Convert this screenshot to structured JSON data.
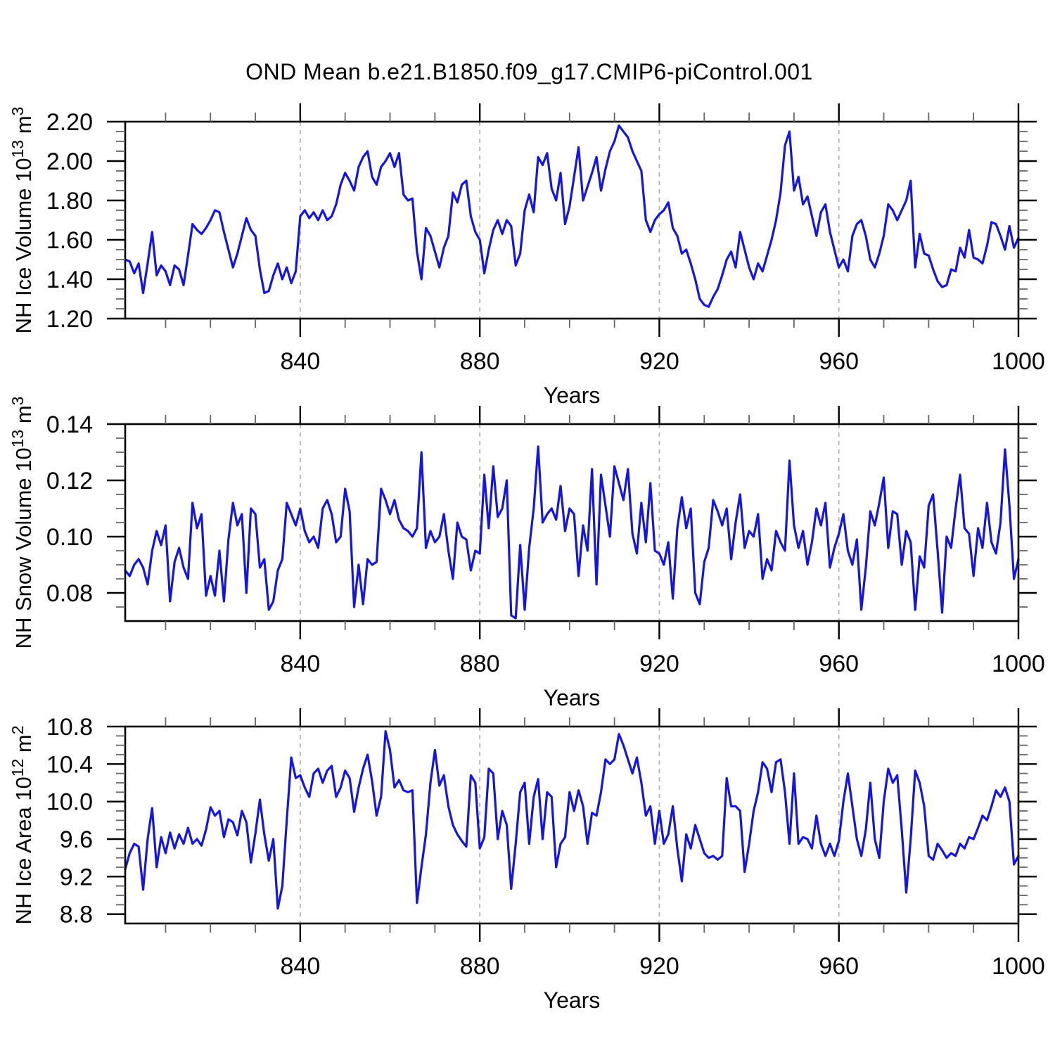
{
  "title": "OND Mean b.e21.B1850.f09_g17.CMIP6-piControl.001",
  "colors": {
    "line": "#1414e6",
    "frame": "#000000",
    "major_tick": "#000000",
    "minor_tick": "#666666",
    "grid": "#b4b4b4",
    "background": "#ffffff"
  },
  "chart_data": [
    {
      "type": "line",
      "name": "nh-ice-volume",
      "ylabel": "NH Ice Volume 10^13 m^3",
      "ylabel_rich": [
        {
          "t": "NH Ice Volume 10",
          "sup": false
        },
        {
          "t": "13",
          "sup": true
        },
        {
          "t": " m",
          "sup": false
        },
        {
          "t": "3",
          "sup": true
        }
      ],
      "xlabel": "Years",
      "xlim": [
        801,
        1000
      ],
      "ylim": [
        1.2,
        2.2
      ],
      "xticks": [
        840,
        880,
        920,
        960,
        1000
      ],
      "xtick_labels": [
        "840",
        "880",
        "920",
        "960",
        "1000"
      ],
      "xminor_step": 10,
      "yticks": [
        1.2,
        1.4,
        1.6,
        1.8,
        2.0,
        2.2
      ],
      "ytick_labels": [
        "1.20",
        "1.40",
        "1.60",
        "1.80",
        "2.00",
        "2.20"
      ],
      "yminor_step": 0.05,
      "grid_x": [
        840,
        880,
        920,
        960
      ],
      "x_start": 801,
      "x_step": 1,
      "values": [
        1.5,
        1.49,
        1.43,
        1.48,
        1.33,
        1.48,
        1.64,
        1.42,
        1.47,
        1.44,
        1.37,
        1.47,
        1.45,
        1.37,
        1.52,
        1.68,
        1.65,
        1.63,
        1.66,
        1.7,
        1.75,
        1.74,
        1.64,
        1.55,
        1.46,
        1.53,
        1.62,
        1.71,
        1.65,
        1.62,
        1.45,
        1.33,
        1.34,
        1.42,
        1.48,
        1.4,
        1.46,
        1.38,
        1.44,
        1.72,
        1.75,
        1.71,
        1.74,
        1.7,
        1.75,
        1.7,
        1.72,
        1.78,
        1.88,
        1.94,
        1.9,
        1.85,
        1.97,
        2.02,
        2.05,
        1.92,
        1.88,
        1.97,
        2.0,
        2.04,
        1.97,
        2.04,
        1.83,
        1.8,
        1.81,
        1.54,
        1.4,
        1.66,
        1.62,
        1.54,
        1.46,
        1.56,
        1.62,
        1.84,
        1.79,
        1.88,
        1.9,
        1.72,
        1.64,
        1.6,
        1.43,
        1.55,
        1.65,
        1.7,
        1.63,
        1.7,
        1.67,
        1.47,
        1.53,
        1.75,
        1.83,
        1.74,
        2.02,
        1.98,
        2.04,
        1.86,
        1.8,
        1.94,
        1.68,
        1.77,
        1.92,
        2.07,
        1.8,
        1.87,
        1.94,
        2.02,
        1.85,
        1.96,
        2.05,
        2.1,
        2.18,
        2.15,
        2.12,
        2.05,
        2.0,
        1.95,
        1.7,
        1.64,
        1.7,
        1.73,
        1.75,
        1.79,
        1.66,
        1.62,
        1.53,
        1.55,
        1.48,
        1.4,
        1.3,
        1.27,
        1.26,
        1.31,
        1.35,
        1.42,
        1.5,
        1.54,
        1.46,
        1.64,
        1.55,
        1.46,
        1.4,
        1.48,
        1.44,
        1.52,
        1.6,
        1.7,
        1.84,
        2.08,
        2.15,
        1.85,
        1.92,
        1.78,
        1.82,
        1.72,
        1.62,
        1.74,
        1.78,
        1.64,
        1.55,
        1.46,
        1.5,
        1.44,
        1.62,
        1.68,
        1.7,
        1.62,
        1.5,
        1.46,
        1.53,
        1.62,
        1.78,
        1.75,
        1.7,
        1.75,
        1.8,
        1.9,
        1.46,
        1.63,
        1.53,
        1.52,
        1.45,
        1.39,
        1.36,
        1.37,
        1.45,
        1.44,
        1.56,
        1.51,
        1.65,
        1.51,
        1.5,
        1.48,
        1.57,
        1.69,
        1.68,
        1.62,
        1.55,
        1.67,
        1.56,
        1.61
      ]
    },
    {
      "type": "line",
      "name": "nh-snow-volume",
      "ylabel": "NH Snow Volume 10^13 m^3",
      "ylabel_rich": [
        {
          "t": "NH Snow Volume 10",
          "sup": false
        },
        {
          "t": "13",
          "sup": true
        },
        {
          "t": " m",
          "sup": false
        },
        {
          "t": "3",
          "sup": true
        }
      ],
      "xlabel": "Years",
      "xlim": [
        801,
        1000
      ],
      "ylim": [
        0.07,
        0.14
      ],
      "xticks": [
        840,
        880,
        920,
        960,
        1000
      ],
      "xtick_labels": [
        "840",
        "880",
        "920",
        "960",
        "1000"
      ],
      "xminor_step": 10,
      "yticks": [
        0.08,
        0.1,
        0.12,
        0.14
      ],
      "ytick_labels": [
        "0.08",
        "0.10",
        "0.12",
        "0.14"
      ],
      "yminor_step": 0.005,
      "grid_x": [
        840,
        880,
        920,
        960
      ],
      "x_start": 801,
      "x_step": 1,
      "values": [
        0.088,
        0.086,
        0.09,
        0.092,
        0.089,
        0.083,
        0.095,
        0.102,
        0.097,
        0.104,
        0.077,
        0.091,
        0.096,
        0.089,
        0.085,
        0.112,
        0.103,
        0.108,
        0.079,
        0.086,
        0.079,
        0.095,
        0.077,
        0.099,
        0.112,
        0.104,
        0.108,
        0.08,
        0.11,
        0.108,
        0.089,
        0.092,
        0.074,
        0.077,
        0.088,
        0.092,
        0.112,
        0.108,
        0.104,
        0.11,
        0.102,
        0.098,
        0.1,
        0.096,
        0.11,
        0.113,
        0.108,
        0.098,
        0.1,
        0.117,
        0.109,
        0.075,
        0.09,
        0.076,
        0.092,
        0.09,
        0.091,
        0.117,
        0.113,
        0.108,
        0.113,
        0.106,
        0.103,
        0.102,
        0.1,
        0.103,
        0.13,
        0.096,
        0.102,
        0.098,
        0.1,
        0.108,
        0.095,
        0.085,
        0.105,
        0.1,
        0.099,
        0.088,
        0.095,
        0.094,
        0.122,
        0.103,
        0.125,
        0.107,
        0.11,
        0.12,
        0.072,
        0.071,
        0.097,
        0.074,
        0.096,
        0.11,
        0.132,
        0.105,
        0.108,
        0.11,
        0.106,
        0.118,
        0.102,
        0.11,
        0.108,
        0.086,
        0.104,
        0.095,
        0.124,
        0.083,
        0.122,
        0.111,
        0.1,
        0.125,
        0.119,
        0.113,
        0.124,
        0.101,
        0.094,
        0.112,
        0.098,
        0.119,
        0.095,
        0.094,
        0.09,
        0.098,
        0.078,
        0.103,
        0.114,
        0.103,
        0.11,
        0.08,
        0.076,
        0.091,
        0.096,
        0.113,
        0.109,
        0.104,
        0.11,
        0.092,
        0.105,
        0.115,
        0.096,
        0.102,
        0.1,
        0.108,
        0.085,
        0.092,
        0.088,
        0.102,
        0.098,
        0.095,
        0.127,
        0.104,
        0.096,
        0.102,
        0.09,
        0.098,
        0.11,
        0.104,
        0.112,
        0.089,
        0.096,
        0.101,
        0.108,
        0.095,
        0.09,
        0.099,
        0.074,
        0.089,
        0.109,
        0.104,
        0.112,
        0.121,
        0.096,
        0.109,
        0.108,
        0.09,
        0.102,
        0.098,
        0.074,
        0.093,
        0.089,
        0.111,
        0.115,
        0.095,
        0.073,
        0.1,
        0.096,
        0.11,
        0.122,
        0.103,
        0.101,
        0.086,
        0.103,
        0.096,
        0.112,
        0.098,
        0.094,
        0.105,
        0.131,
        0.111,
        0.085,
        0.092
      ]
    },
    {
      "type": "line",
      "name": "nh-ice-area",
      "ylabel": "NH Ice Area 10^12 m^2",
      "ylabel_rich": [
        {
          "t": "NH Ice Area 10",
          "sup": false
        },
        {
          "t": "12",
          "sup": true
        },
        {
          "t": " m",
          "sup": false
        },
        {
          "t": "2",
          "sup": true
        }
      ],
      "xlabel": "Years",
      "xlim": [
        801,
        1000
      ],
      "ylim": [
        8.7,
        10.8
      ],
      "xticks": [
        840,
        880,
        920,
        960,
        1000
      ],
      "xtick_labels": [
        "840",
        "880",
        "920",
        "960",
        "1000"
      ],
      "xminor_step": 10,
      "yticks": [
        8.8,
        9.2,
        9.6,
        10.0,
        10.4,
        10.8
      ],
      "ytick_labels": [
        "8.8",
        "9.2",
        "9.6",
        "10.0",
        "10.4",
        "10.8"
      ],
      "yminor_step": 0.1,
      "grid_x": [
        840,
        880,
        920,
        960
      ],
      "x_start": 801,
      "x_step": 1,
      "values": [
        9.28,
        9.45,
        9.55,
        9.52,
        9.06,
        9.6,
        9.93,
        9.3,
        9.62,
        9.45,
        9.67,
        9.5,
        9.65,
        9.55,
        9.72,
        9.55,
        9.6,
        9.53,
        9.7,
        9.94,
        9.85,
        9.9,
        9.62,
        9.81,
        9.78,
        9.64,
        9.9,
        9.78,
        9.35,
        9.66,
        10.02,
        9.65,
        9.37,
        9.6,
        8.86,
        9.1,
        9.8,
        10.47,
        10.25,
        10.28,
        10.15,
        10.05,
        10.3,
        10.35,
        10.2,
        10.33,
        10.38,
        10.05,
        10.15,
        10.33,
        10.25,
        9.89,
        10.15,
        10.35,
        10.5,
        10.22,
        9.85,
        10.05,
        10.75,
        10.55,
        10.15,
        10.23,
        10.12,
        10.1,
        10.12,
        8.92,
        9.3,
        9.65,
        10.2,
        10.55,
        10.17,
        10.28,
        9.95,
        9.75,
        9.65,
        9.58,
        9.52,
        10.28,
        10.2,
        9.5,
        9.62,
        10.35,
        10.3,
        9.6,
        9.9,
        9.75,
        9.07,
        9.55,
        10.1,
        10.2,
        9.55,
        10.05,
        10.24,
        9.6,
        10.1,
        10.05,
        9.3,
        9.55,
        9.62,
        10.1,
        9.9,
        10.12,
        9.95,
        9.55,
        9.88,
        9.85,
        10.1,
        10.45,
        10.4,
        10.45,
        10.72,
        10.6,
        10.45,
        10.3,
        10.47,
        10.2,
        9.85,
        9.95,
        9.55,
        9.9,
        9.55,
        9.65,
        9.95,
        9.5,
        9.15,
        9.65,
        9.5,
        9.75,
        9.6,
        9.45,
        9.4,
        9.42,
        9.38,
        9.42,
        10.25,
        9.95,
        9.95,
        9.9,
        9.25,
        9.55,
        9.9,
        10.1,
        10.42,
        10.35,
        10.1,
        10.42,
        10.45,
        10.1,
        9.55,
        10.3,
        9.55,
        9.62,
        9.6,
        9.5,
        9.85,
        9.55,
        9.42,
        9.55,
        9.42,
        9.58,
        10.0,
        10.3,
        9.95,
        9.6,
        9.42,
        9.7,
        10.2,
        9.6,
        9.4,
        10.0,
        10.35,
        10.2,
        10.28,
        9.7,
        9.03,
        9.6,
        10.33,
        10.2,
        9.95,
        9.42,
        9.38,
        9.55,
        9.48,
        9.4,
        9.45,
        9.42,
        9.55,
        9.5,
        9.62,
        9.6,
        9.72,
        9.85,
        9.8,
        9.95,
        10.12,
        10.05,
        10.15,
        10.0,
        9.33,
        9.42
      ]
    }
  ]
}
